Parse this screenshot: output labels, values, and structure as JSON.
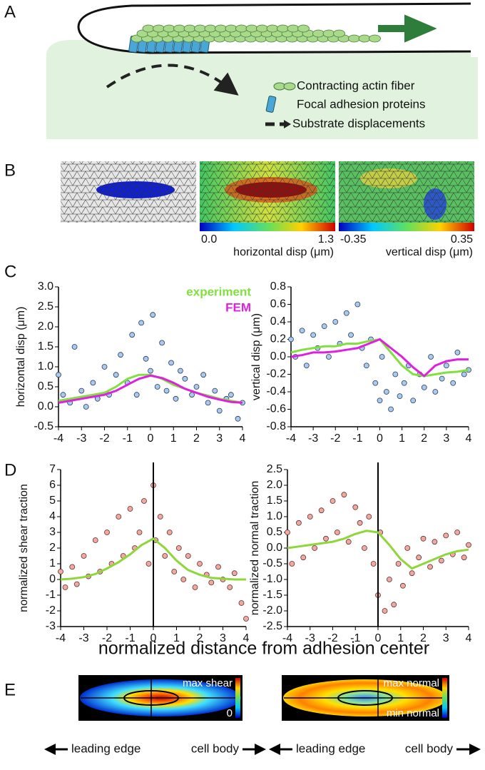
{
  "panel_labels": [
    "A",
    "B",
    "C",
    "D",
    "E"
  ],
  "panel_a": {
    "legend": [
      "Contracting actin fiber",
      "Focal adhesion proteins",
      "Substrate displacements"
    ]
  },
  "panel_b": {
    "colorbars": [
      {
        "min": "0.0",
        "max": "1.3",
        "label": "horizontal disp (μm)"
      },
      {
        "min": "-0.35",
        "max": "0.35",
        "label": "vertical disp (μm)"
      }
    ]
  },
  "shared_xlabel": "normalized distance from adhesion center",
  "panel_e": {
    "maps": [
      {
        "top": "max shear",
        "bottom": "0"
      },
      {
        "top": "max normal",
        "bottom": "min normal"
      }
    ],
    "left": "leading edge",
    "right": "cell body"
  },
  "chart_data": [
    {
      "type": "scatter",
      "ylabel": "horizontal disp (μm)",
      "xlim": [
        -4,
        4
      ],
      "xticks": [
        -4,
        -3,
        -2,
        -1,
        0,
        1,
        2,
        3,
        4
      ],
      "ylim": [
        -0.5,
        3.0
      ],
      "yticks": [
        {
          "value": 3,
          "label": "3.0"
        },
        2.5,
        {
          "value": 2,
          "label": "2.0"
        },
        1.5,
        {
          "value": 1,
          "label": "1.0"
        },
        0.5,
        {
          "value": 0,
          "label": "0.0"
        },
        -0.5
      ],
      "points": {
        "color": "#a9c9ef",
        "x": [
          -4,
          -3.8,
          -3.5,
          -3.3,
          -3,
          -2.8,
          -2.5,
          -2.3,
          -2,
          -1.8,
          -1.5,
          -1.3,
          -1,
          -0.8,
          -0.6,
          -0.4,
          -0.2,
          0,
          0.1,
          0.3,
          0.5,
          0.7,
          0.9,
          1.1,
          1.3,
          1.5,
          1.8,
          2,
          2.3,
          2.5,
          2.8,
          3,
          3.3,
          3.5,
          3.8,
          4
        ],
        "y": [
          0.8,
          0.3,
          0.1,
          1.5,
          0.4,
          0.0,
          0.6,
          0.2,
          1.0,
          0.3,
          0.8,
          1.3,
          0.6,
          1.8,
          0.3,
          2.1,
          1.2,
          0.9,
          2.3,
          0.5,
          1.6,
          0.4,
          1.1,
          0.2,
          0.9,
          0.7,
          0.3,
          0.5,
          0.8,
          0.1,
          0.4,
          -0.1,
          0.2,
          0.3,
          -0.3,
          0.1
        ]
      },
      "series": [
        {
          "name": "experiment",
          "color": "#80e040",
          "x": [
            -4,
            -3.5,
            -3,
            -2.5,
            -2,
            -1.5,
            -1,
            -0.5,
            0,
            0.5,
            1,
            1.5,
            2,
            2.5,
            3,
            3.5,
            4
          ],
          "values": [
            0.15,
            0.2,
            0.25,
            0.3,
            0.35,
            0.5,
            0.7,
            0.8,
            0.8,
            0.7,
            0.55,
            0.45,
            0.35,
            0.28,
            0.2,
            0.15,
            0.1
          ]
        },
        {
          "name": "FEM",
          "color": "#e020e0",
          "x": [
            -4,
            -3.5,
            -3,
            -2.5,
            -2,
            -1.5,
            -1,
            -0.5,
            0,
            0.5,
            1,
            1.5,
            2,
            2.5,
            3,
            3.5,
            4
          ],
          "values": [
            0.1,
            0.15,
            0.2,
            0.25,
            0.3,
            0.4,
            0.55,
            0.7,
            0.78,
            0.72,
            0.6,
            0.45,
            0.35,
            0.25,
            0.18,
            0.12,
            0.1
          ]
        }
      ]
    },
    {
      "type": "scatter",
      "ylabel": "vertical disp (μm)",
      "xlim": [
        -4,
        4
      ],
      "xticks": [
        -4,
        -3,
        -2,
        -1,
        0,
        1,
        2,
        3,
        4
      ],
      "ylim": [
        -0.8,
        0.8
      ],
      "yticks": [
        0.8,
        0.6,
        0.4,
        0.2,
        {
          "value": 0,
          "label": "0.0"
        },
        -0.2,
        -0.4,
        -0.6,
        -0.8
      ],
      "points": {
        "color": "#a9c9ef",
        "x": [
          -4,
          -3.8,
          -3.5,
          -3.3,
          -3,
          -2.8,
          -2.5,
          -2.3,
          -2,
          -1.8,
          -1.5,
          -1.3,
          -1,
          -0.8,
          -0.6,
          -0.4,
          -0.2,
          0,
          0.1,
          0.3,
          0.5,
          0.7,
          0.9,
          1.1,
          1.3,
          1.5,
          1.8,
          2,
          2.3,
          2.5,
          2.8,
          3,
          3.3,
          3.5,
          3.8,
          4
        ],
        "y": [
          0.2,
          0.0,
          0.3,
          -0.1,
          0.25,
          0.1,
          0.35,
          0.0,
          0.4,
          0.15,
          0.5,
          0.25,
          0.6,
          0.1,
          -0.1,
          0.2,
          -0.3,
          -0.5,
          0.0,
          -0.4,
          -0.6,
          -0.2,
          -0.45,
          -0.3,
          -0.1,
          -0.5,
          -0.2,
          -0.35,
          0.0,
          -0.4,
          -0.25,
          -0.1,
          -0.3,
          0.05,
          -0.2,
          -0.15
        ]
      },
      "series": [
        {
          "color": "#80e040",
          "x": [
            -4,
            -3.5,
            -3,
            -2.5,
            -2,
            -1.5,
            -1,
            -0.5,
            0,
            0.5,
            1,
            1.5,
            2,
            2.5,
            3,
            3.5,
            4
          ],
          "values": [
            0.05,
            0.08,
            0.1,
            0.12,
            0.12,
            0.15,
            0.15,
            0.18,
            0.2,
            0.05,
            -0.1,
            -0.2,
            -0.22,
            -0.2,
            -0.18,
            -0.17,
            -0.15
          ]
        },
        {
          "color": "#e020e0",
          "x": [
            -4,
            -3.5,
            -3,
            -2.5,
            -2,
            -1.5,
            -1,
            -0.5,
            0,
            0.5,
            1,
            1.5,
            2,
            2.5,
            3,
            3.5,
            4
          ],
          "values": [
            0.0,
            0.02,
            0.05,
            0.05,
            0.06,
            0.08,
            0.1,
            0.15,
            0.2,
            0.1,
            0.0,
            -0.12,
            -0.22,
            -0.1,
            -0.05,
            -0.03,
            -0.03
          ]
        }
      ]
    },
    {
      "type": "scatter",
      "ylabel": "normalized shear traction",
      "vline": 0,
      "xlim": [
        -4,
        4
      ],
      "xticks": [
        -4,
        -3,
        -2,
        -1,
        0,
        1,
        2,
        3,
        4
      ],
      "ylim": [
        -3,
        7
      ],
      "yticks": [
        7,
        6,
        5,
        4,
        3,
        2,
        1,
        0,
        -1,
        -2,
        -3
      ],
      "points": {
        "color": "#f4a7a0",
        "x": [
          -4,
          -3.8,
          -3.5,
          -3.3,
          -3,
          -2.8,
          -2.5,
          -2.3,
          -2,
          -1.8,
          -1.5,
          -1.3,
          -1,
          -0.8,
          -0.6,
          -0.4,
          -0.2,
          0,
          0.1,
          0.3,
          0.5,
          0.7,
          0.9,
          1.1,
          1.3,
          1.5,
          1.8,
          2,
          2.3,
          2.5,
          2.8,
          3,
          3.3,
          3.5,
          3.8,
          4
        ],
        "y": [
          0.5,
          -0.5,
          0.8,
          -0.3,
          1.5,
          0.2,
          2.5,
          0.5,
          3,
          1.0,
          4,
          1.5,
          4.5,
          2,
          3,
          5,
          1,
          6,
          2.5,
          4,
          1.5,
          3,
          0.5,
          2,
          0,
          1.5,
          -0.5,
          1,
          0.3,
          -0.2,
          0.8,
          0,
          -0.5,
          0.4,
          -1.5,
          -2.5
        ]
      },
      "series": [
        {
          "color": "#8fd63a",
          "x": [
            -4,
            -3.5,
            -3,
            -2.5,
            -2,
            -1.5,
            -1,
            -0.5,
            0,
            0.5,
            1,
            1.5,
            2,
            2.5,
            3,
            3.5,
            4
          ],
          "values": [
            0,
            0.05,
            0.15,
            0.35,
            0.7,
            1.1,
            1.6,
            2.2,
            2.6,
            2.0,
            1.2,
            0.6,
            0.3,
            0.1,
            0.05,
            0.0,
            0.0
          ]
        }
      ]
    },
    {
      "type": "scatter",
      "ylabel": "normalized normal traction",
      "vline": 0,
      "xlim": [
        -4,
        4
      ],
      "xticks": [
        -4,
        -3,
        -2,
        -1,
        0,
        1,
        2,
        3,
        4
      ],
      "ylim": [
        -2.5,
        2.5
      ],
      "yticks": [
        2.5,
        {
          "value": 2,
          "label": "2.0"
        },
        1.5,
        {
          "value": 1,
          "label": "1.0"
        },
        0.5,
        {
          "value": 0,
          "label": "0.0"
        },
        -0.5,
        {
          "value": -1,
          "label": "-1.0"
        },
        -1.5,
        {
          "value": -2,
          "label": "-2.0"
        },
        -2.5
      ],
      "points": {
        "color": "#f4a7a0",
        "x": [
          -4,
          -3.8,
          -3.5,
          -3.3,
          -3,
          -2.8,
          -2.5,
          -2.3,
          -2,
          -1.8,
          -1.5,
          -1.3,
          -1,
          -0.8,
          -0.6,
          -0.4,
          -0.2,
          0,
          0.1,
          0.3,
          0.5,
          0.7,
          0.9,
          1.1,
          1.3,
          1.5,
          1.8,
          2,
          2.3,
          2.5,
          2.8,
          3,
          3.3,
          3.5,
          3.8,
          4
        ],
        "y": [
          0.5,
          -0.5,
          0.8,
          -0.3,
          1.0,
          0.0,
          1.2,
          0.3,
          1.5,
          0.5,
          1.7,
          0.2,
          1.3,
          0.8,
          0.0,
          1.0,
          -0.5,
          -1.5,
          0.5,
          -2.0,
          -1.0,
          -1.8,
          -0.5,
          -1.2,
          0.0,
          -0.8,
          -0.3,
          0.3,
          -0.6,
          0.2,
          -0.4,
          0.4,
          -0.2,
          0.5,
          -0.3,
          0.1
        ]
      },
      "series": [
        {
          "color": "#8fd63a",
          "x": [
            -4,
            -3.5,
            -3,
            -2.5,
            -2,
            -1.5,
            -1,
            -0.5,
            0,
            0.5,
            1,
            1.5,
            2,
            2.5,
            3,
            3.5,
            4
          ],
          "values": [
            0.0,
            0.05,
            0.1,
            0.15,
            0.2,
            0.3,
            0.45,
            0.55,
            0.5,
            0.1,
            -0.35,
            -0.65,
            -0.5,
            -0.35,
            -0.2,
            -0.1,
            -0.05
          ]
        }
      ]
    }
  ]
}
